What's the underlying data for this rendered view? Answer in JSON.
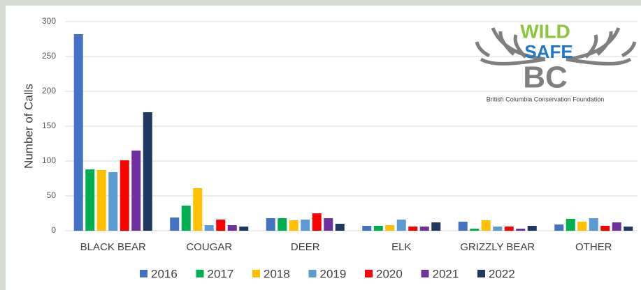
{
  "chart_data": {
    "type": "bar",
    "ylabel": "Number of Calls",
    "categories": [
      "BLACK BEAR",
      "COUGAR",
      "DEER",
      "ELK",
      "GRIZZLY BEAR",
      "OTHER"
    ],
    "series": [
      {
        "name": "2016",
        "color": "#4472c4",
        "values": [
          282,
          19,
          18,
          7,
          13,
          9
        ]
      },
      {
        "name": "2017",
        "color": "#00b050",
        "values": [
          88,
          36,
          18,
          7,
          3,
          17
        ]
      },
      {
        "name": "2018",
        "color": "#ffc000",
        "values": [
          87,
          61,
          15,
          8,
          15,
          13
        ]
      },
      {
        "name": "2019",
        "color": "#5b9bd5",
        "values": [
          84,
          8,
          16,
          16,
          6,
          18
        ]
      },
      {
        "name": "2020",
        "color": "#ff0000",
        "values": [
          101,
          16,
          25,
          6,
          6,
          7
        ]
      },
      {
        "name": "2021",
        "color": "#7030a0",
        "values": [
          115,
          8,
          18,
          6,
          3,
          12
        ]
      },
      {
        "name": "2022",
        "color": "#203864",
        "values": [
          170,
          6,
          10,
          12,
          7,
          6
        ]
      }
    ],
    "ylim": [
      0,
      300
    ],
    "yticks": [
      0,
      50,
      100,
      150,
      200,
      250,
      300
    ],
    "grid": true,
    "legend": "bottom"
  },
  "logo": {
    "word1": "WILD",
    "word2": "SAFE",
    "word3": "BC",
    "caption": "British Columbia Conservation Foundation"
  }
}
